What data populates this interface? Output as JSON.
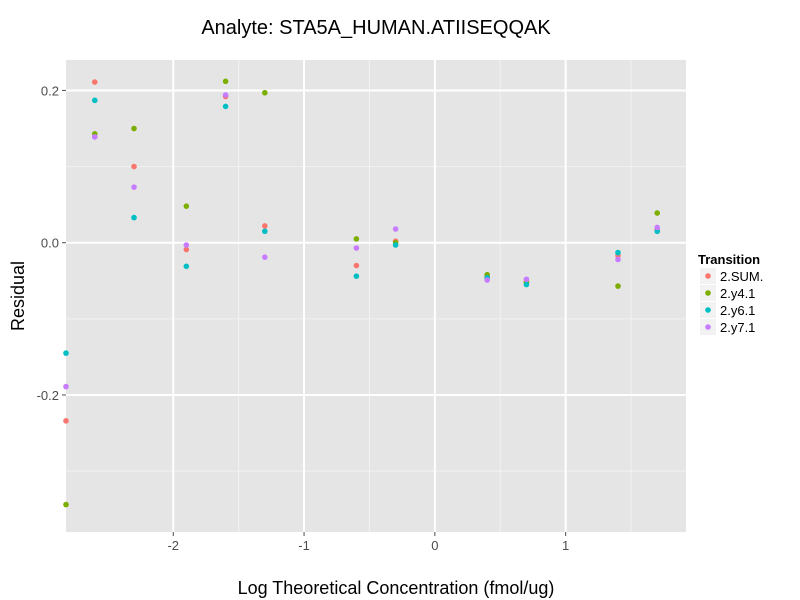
{
  "chart_data": {
    "type": "scatter",
    "title": "Analyte: STA5A_HUMAN.ATIISEQQAK",
    "xlabel": "Log Theoretical Concentration (fmol/ug)",
    "ylabel": "Residual",
    "xlim": [
      -2.82,
      1.92
    ],
    "ylim": [
      -0.38,
      0.24
    ],
    "x_ticks": [
      -2,
      -1,
      0,
      1
    ],
    "x_tick_labels": [
      "-2",
      "-1",
      "0",
      "1"
    ],
    "y_ticks": [
      -0.2,
      0.0,
      0.2
    ],
    "y_tick_labels": [
      "-0.2",
      "0.0",
      "0.2"
    ],
    "grid": true,
    "legend": {
      "title": "Transition",
      "position": "right"
    },
    "colors": {
      "panel": "#e5e5e5",
      "grid_major": "#ffffff",
      "grid_minor": "#f2f2f2"
    },
    "series": [
      {
        "name": "2.SUM.",
        "color": "#F8766D",
        "points": [
          [
            -2.82,
            -0.234
          ],
          [
            -2.6,
            0.211
          ],
          [
            -2.3,
            0.1
          ],
          [
            -1.9,
            -0.009
          ],
          [
            -1.6,
            0.192
          ],
          [
            -1.3,
            0.022
          ],
          [
            -0.6,
            -0.03
          ],
          [
            -0.3,
            0.002
          ],
          [
            0.4,
            -0.044
          ],
          [
            0.7,
            -0.05
          ],
          [
            1.4,
            -0.017
          ],
          [
            1.7,
            0.017
          ]
        ]
      },
      {
        "name": "2.y4.1",
        "color": "#7CAE00",
        "points": [
          [
            -2.82,
            -0.344
          ],
          [
            -2.6,
            0.143
          ],
          [
            -2.3,
            0.15
          ],
          [
            -1.9,
            0.048
          ],
          [
            -1.6,
            0.212
          ],
          [
            -1.3,
            0.197
          ],
          [
            -0.6,
            0.005
          ],
          [
            -0.3,
            0.0
          ],
          [
            0.4,
            -0.042
          ],
          [
            0.7,
            -0.052
          ],
          [
            1.4,
            -0.057
          ],
          [
            1.7,
            0.039
          ]
        ]
      },
      {
        "name": "2.y6.1",
        "color": "#00BFC4",
        "points": [
          [
            -2.82,
            -0.145
          ],
          [
            -2.6,
            0.187
          ],
          [
            -2.3,
            0.033
          ],
          [
            -1.9,
            -0.031
          ],
          [
            -1.6,
            0.179
          ],
          [
            -1.3,
            0.015
          ],
          [
            -0.6,
            -0.044
          ],
          [
            -0.3,
            -0.003
          ],
          [
            0.4,
            -0.046
          ],
          [
            0.7,
            -0.055
          ],
          [
            1.4,
            -0.013
          ],
          [
            1.7,
            0.015
          ]
        ]
      },
      {
        "name": "2.y7.1",
        "color": "#C77CFF",
        "points": [
          [
            -2.82,
            -0.189
          ],
          [
            -2.6,
            0.139
          ],
          [
            -2.3,
            0.073
          ],
          [
            -1.9,
            -0.003
          ],
          [
            -1.6,
            0.194
          ],
          [
            -1.3,
            -0.019
          ],
          [
            -0.6,
            -0.007
          ],
          [
            -0.3,
            0.018
          ],
          [
            0.4,
            -0.049
          ],
          [
            0.7,
            -0.048
          ],
          [
            1.4,
            -0.022
          ],
          [
            1.7,
            0.02
          ]
        ]
      }
    ]
  }
}
